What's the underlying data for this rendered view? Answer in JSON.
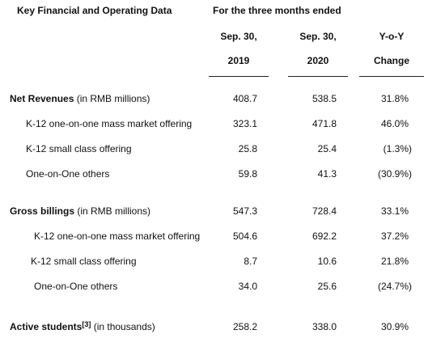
{
  "header": {
    "key_label": "Key Financial and Operating Data",
    "period_label": "For the three months ended",
    "col1_line1": "Sep. 30,",
    "col1_line2": "2019",
    "col2_line1": "Sep. 30,",
    "col2_line2": "2020",
    "col3_line1": "Y-o-Y",
    "col3_line2": "Change"
  },
  "sections": {
    "revenues": {
      "label": "Net Revenues",
      "unit": " (in RMB millions)",
      "values": [
        "408.7",
        "538.5",
        "31.8%"
      ],
      "rows": [
        {
          "label": "K-12 one-on-one mass market offering",
          "values": [
            "323.1",
            "471.8",
            "46.0%"
          ]
        },
        {
          "label": "K-12 small class offering",
          "values": [
            "25.8",
            "25.4",
            "(1.3%)"
          ]
        },
        {
          "label": "One-on-One others",
          "values": [
            "59.8",
            "41.3",
            "(30.9%)"
          ]
        }
      ]
    },
    "billings": {
      "label": "Gross billings",
      "unit": " (in RMB millions)",
      "values": [
        "547.3",
        "728.4",
        "33.1%"
      ],
      "rows": [
        {
          "label": "K-12 one-on-one mass market offering",
          "values": [
            "504.6",
            "692.2",
            "37.2%"
          ]
        },
        {
          "label": "K-12 small class offering",
          "values": [
            "8.7",
            "10.6",
            "21.8%"
          ]
        },
        {
          "label": "One-on-One others",
          "values": [
            "34.0",
            "25.6",
            "(24.7%)"
          ]
        }
      ]
    },
    "students": {
      "label": "Active students",
      "footnote": "[3]",
      "unit": " (in thousands)",
      "values": [
        "258.2",
        "338.0",
        "30.9%"
      ]
    }
  }
}
